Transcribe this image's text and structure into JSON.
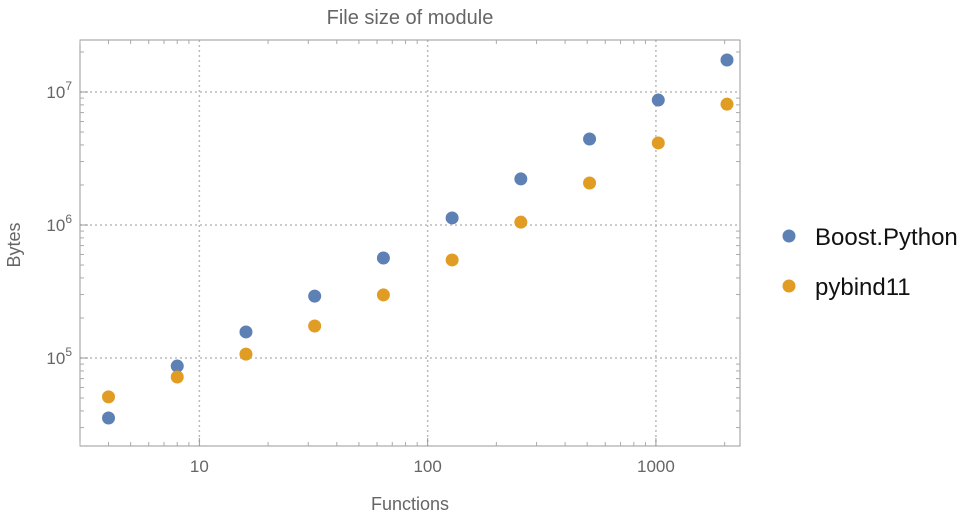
{
  "chart_data": {
    "type": "scatter",
    "title": "File size of module",
    "xlabel": "Functions",
    "ylabel": "Bytes",
    "xscale": "log",
    "yscale": "log",
    "xlim": [
      3.0,
      2335
    ],
    "ylim": [
      21800,
      24600000
    ],
    "grid": true,
    "legend_position": "right",
    "x_ticks": [
      {
        "value": 10,
        "label": "10"
      },
      {
        "value": 100,
        "label": "100"
      },
      {
        "value": 1000,
        "label": "1000"
      }
    ],
    "y_ticks": [
      {
        "value": 100000,
        "base": "10",
        "exp": "5"
      },
      {
        "value": 1000000,
        "base": "10",
        "exp": "6"
      },
      {
        "value": 10000000,
        "base": "10",
        "exp": "7"
      }
    ],
    "x": [
      4,
      8,
      16,
      32,
      64,
      128,
      256,
      512,
      1024,
      2048
    ],
    "series": [
      {
        "name": "Boost.Python",
        "color": "#5e81b5",
        "values": [
          35400,
          87000,
          157000,
          292000,
          565000,
          1130000,
          2220000,
          4430000,
          8700000,
          17400000
        ]
      },
      {
        "name": "pybind11",
        "color": "#e19c24",
        "values": [
          51000,
          72000,
          107000,
          174000,
          298000,
          546000,
          1050000,
          2070000,
          4140000,
          8100000
        ]
      }
    ]
  }
}
